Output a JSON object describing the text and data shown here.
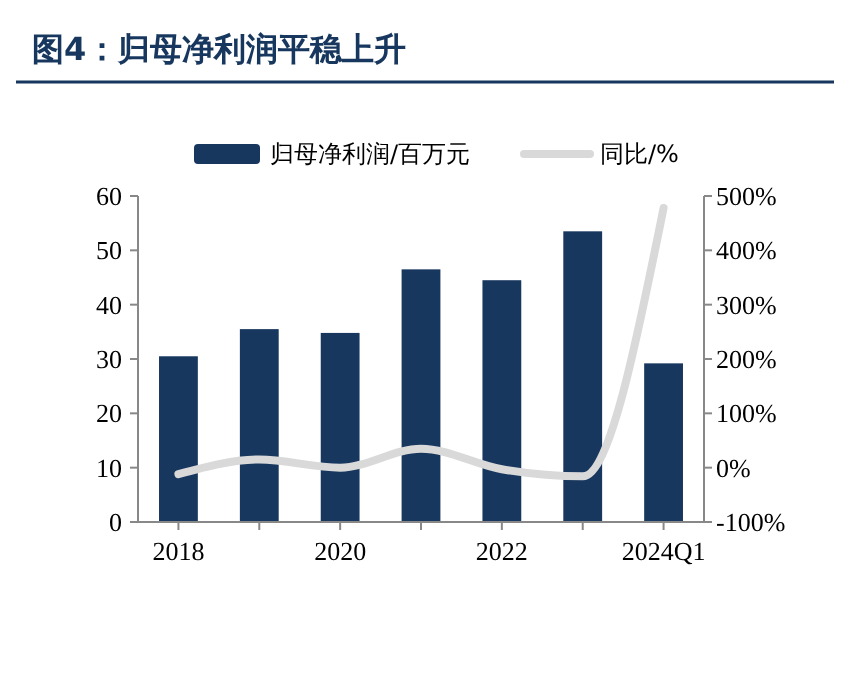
{
  "chart_data": {
    "type": "bar",
    "title": "图4：归母净利润平稳上升",
    "categories": [
      "2018",
      null,
      "2020",
      null,
      "2022",
      null,
      "2024Q1"
    ],
    "series": [
      {
        "name": "归母净利润/百万元",
        "color": "#17375e",
        "values": [
          30.5,
          35.5,
          34.8,
          46.5,
          44.5,
          53.5,
          29.2
        ]
      },
      {
        "name": "同比/%",
        "type": "line",
        "axis": "y2",
        "color": "#d9d9d9",
        "values": [
          -12,
          15,
          0,
          35,
          -3,
          -16,
          478
        ]
      }
    ],
    "ylim": [
      0,
      60
    ],
    "yticks": [
      0,
      10,
      20,
      30,
      40,
      50,
      60
    ],
    "y2lim": [
      -100,
      500
    ],
    "y2ticks": [
      {
        "value": -100,
        "label": "-100%"
      },
      {
        "value": 0,
        "label": "0%"
      },
      {
        "value": 100,
        "label": "100%"
      },
      {
        "value": 200,
        "label": "200%"
      },
      {
        "value": 300,
        "label": "300%"
      },
      {
        "value": 400,
        "label": "400%"
      },
      {
        "value": 500,
        "label": "500%"
      }
    ],
    "grid": false,
    "legend": "top",
    "marker": "none",
    "line_style": "solid"
  }
}
